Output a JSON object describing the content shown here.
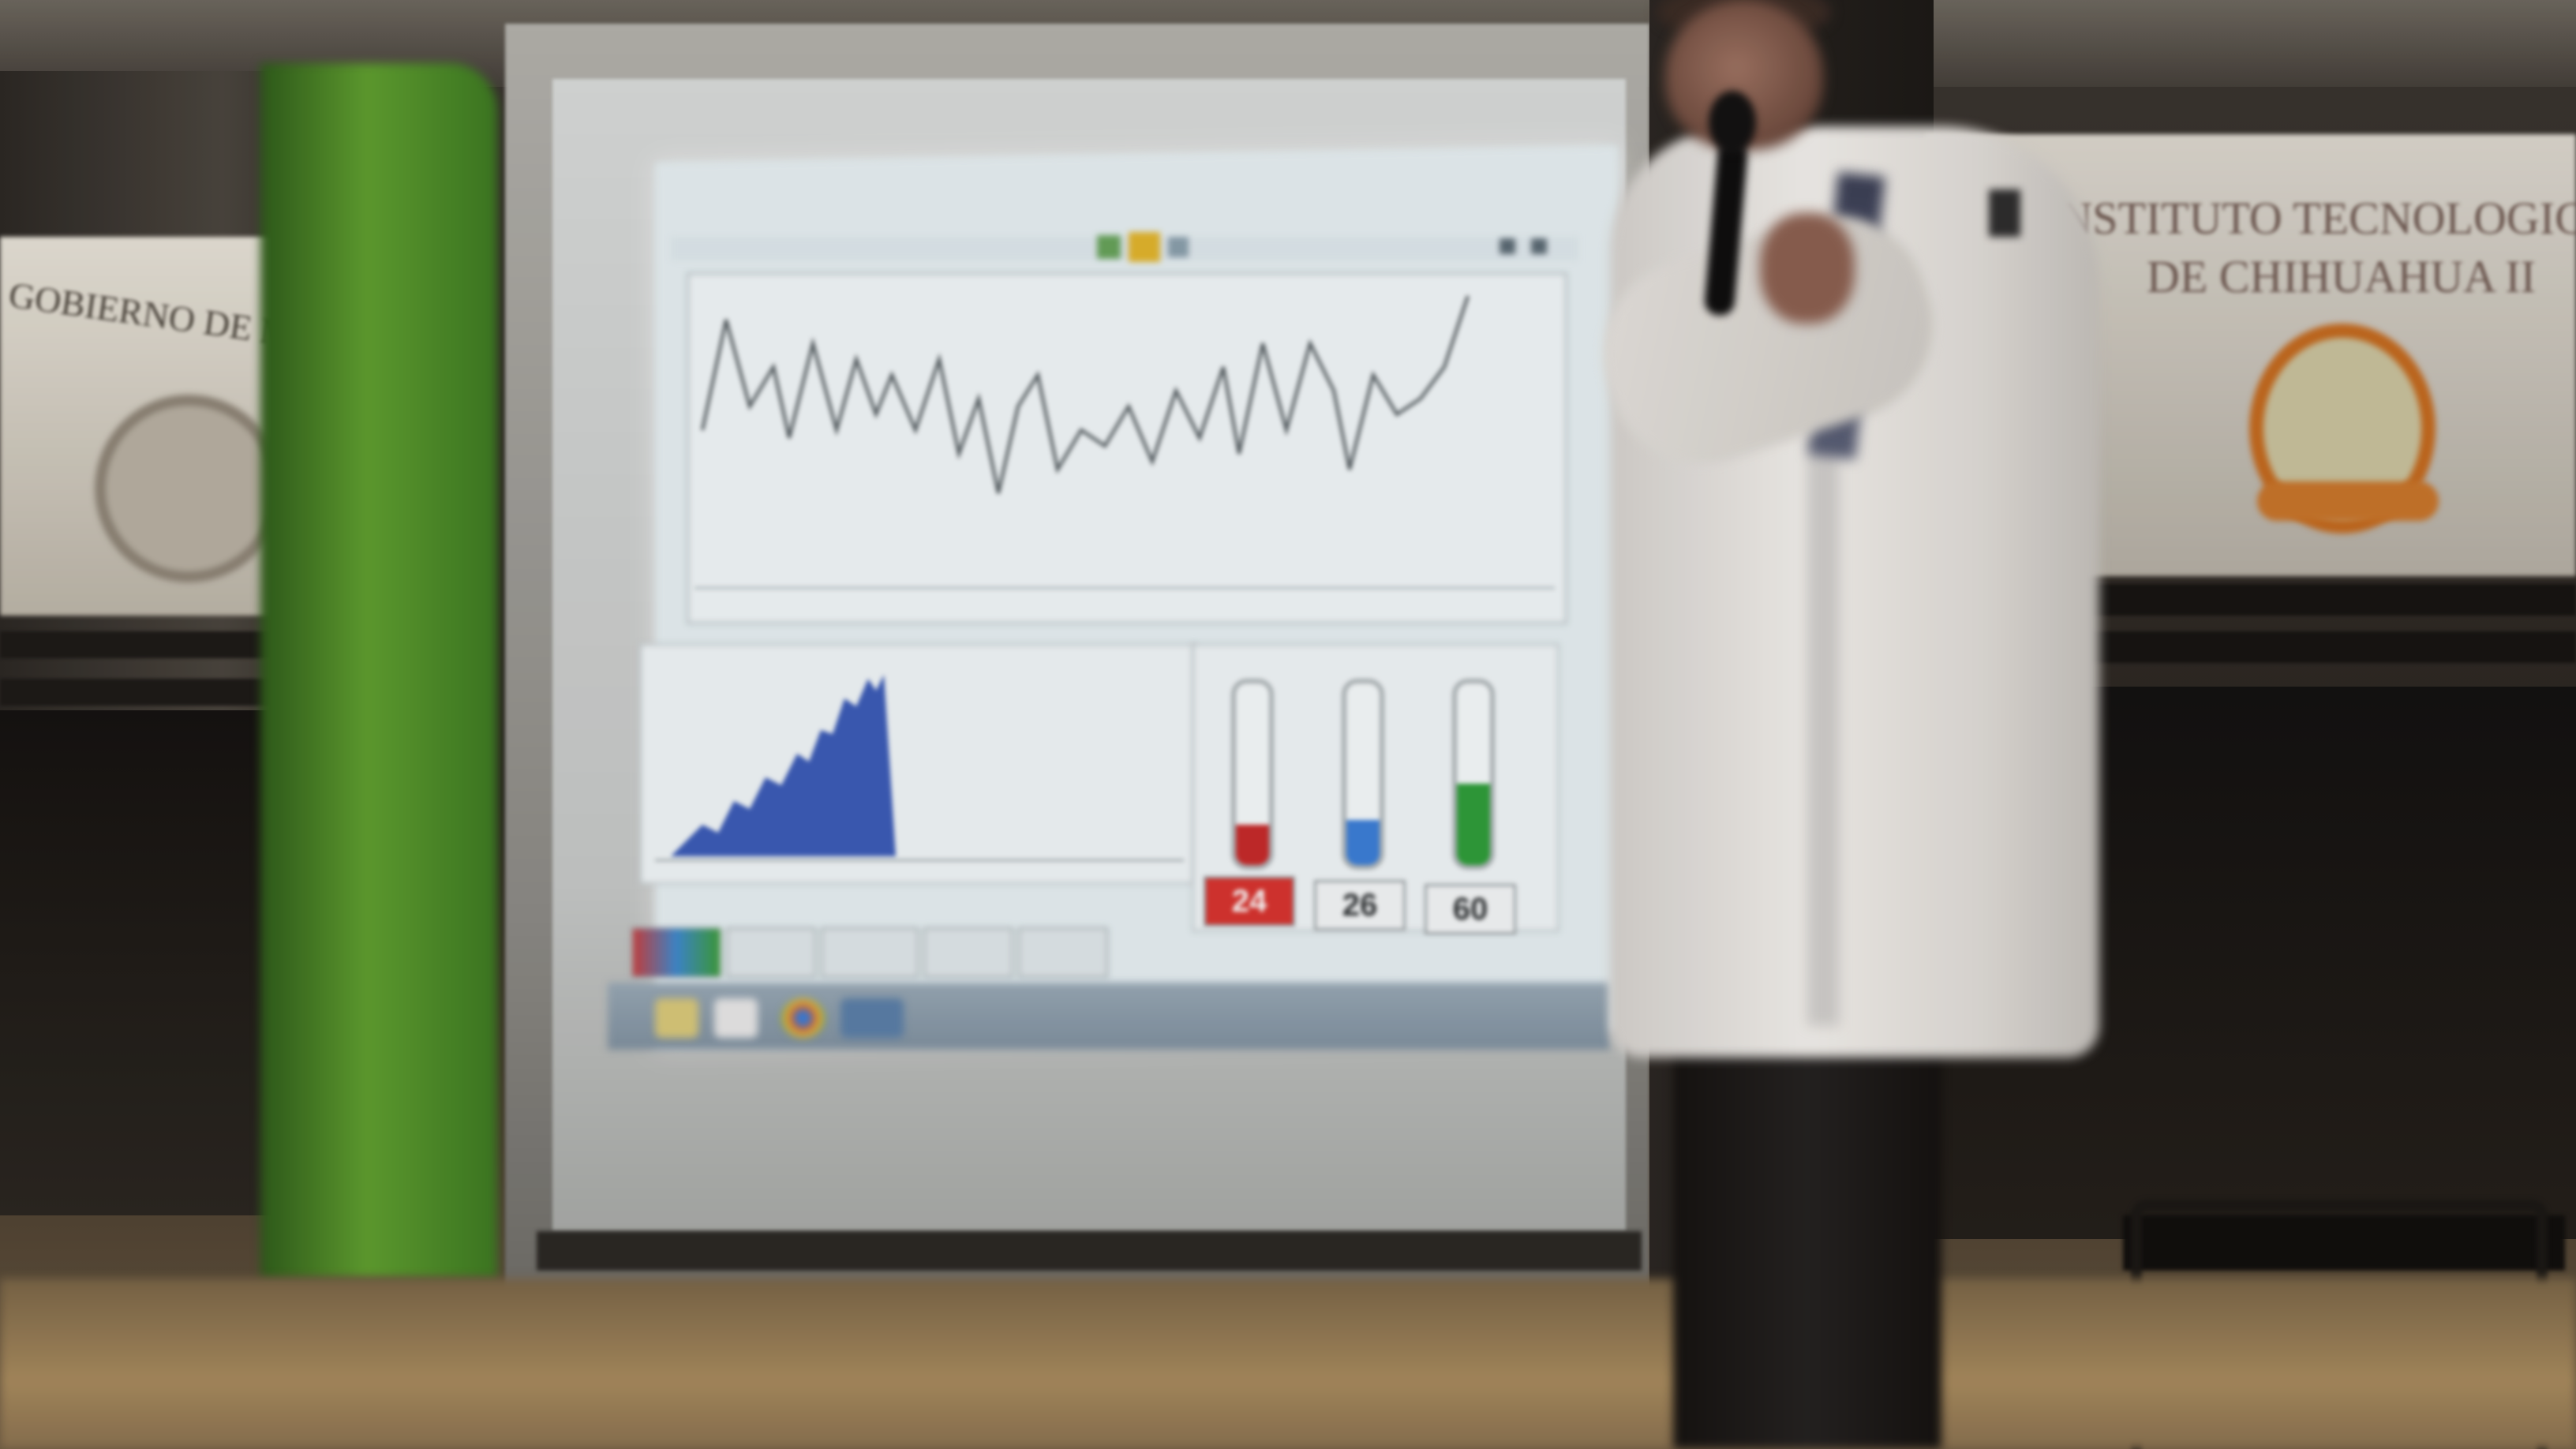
{
  "scene": {
    "description_hidden": "",
    "left_banner": {
      "text": "GOBIERNO DE MEXICO"
    },
    "right_banner": {
      "line1": "INSTITUTO TECNOLOGICO",
      "line2": "DE CHIHUAHUA II"
    },
    "projected_screen": {
      "tube_labels": [
        "24",
        "26",
        "60"
      ],
      "tube_levels": [
        0.22,
        0.25,
        0.45
      ],
      "tube_colors": [
        "#c62a2a",
        "#3b7fd8",
        "#2e9e3a"
      ],
      "accent_colors": {
        "waveform": "#555e62",
        "area_fill": "#3b5cb8"
      }
    }
  }
}
